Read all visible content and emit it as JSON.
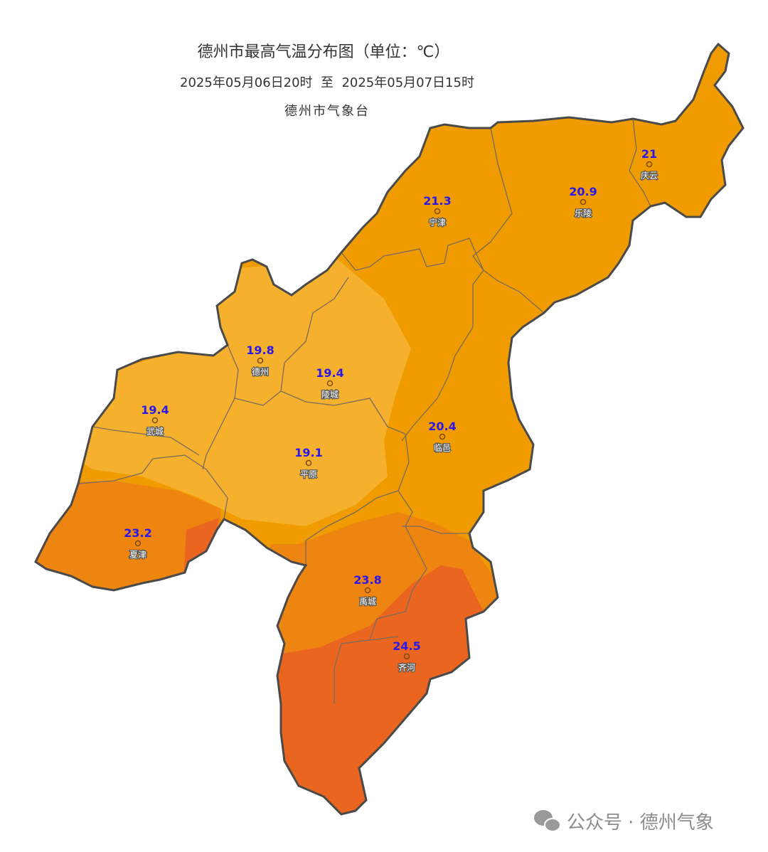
{
  "header": {
    "title": "德州市最高气温分布图（单位：℃）",
    "period": "2025年05月06日20时  至  2025年05月07日15时",
    "source": "德州市气象台"
  },
  "stations": [
    {
      "name": "庆云",
      "value": 21
    },
    {
      "name": "乐陵",
      "value": 20.9
    },
    {
      "name": "宁津",
      "value": 21.3
    },
    {
      "name": "德州",
      "value": 19.8
    },
    {
      "name": "陵城",
      "value": 19.4
    },
    {
      "name": "武城",
      "value": 19.4
    },
    {
      "name": "平原",
      "value": 19.1
    },
    {
      "name": "临邑",
      "value": 20.4
    },
    {
      "name": "夏津",
      "value": 23.2
    },
    {
      "name": "禹城",
      "value": 23.8
    },
    {
      "name": "齐河",
      "value": 24.5
    }
  ],
  "watermark": "公众号 · 德州气象"
}
